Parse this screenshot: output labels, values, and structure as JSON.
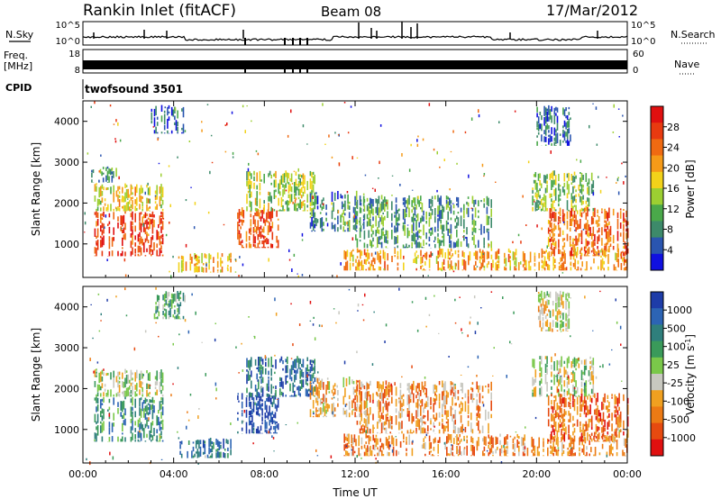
{
  "header": {
    "station": "Rankin Inlet (fitACF)",
    "beam": "Beam 08",
    "date": "17/Mar/2012"
  },
  "top_panels": {
    "nsky_label": "N.Sky",
    "nsky_ticks": [
      "10^5",
      "10^0"
    ],
    "nsearch_label": "N.Search",
    "nsearch_ticks": [
      "10^5",
      "10^0"
    ],
    "freq_label": "Freq.",
    "freq_unit": "[MHz]",
    "freq_ticks": [
      "18",
      "8"
    ],
    "nave_label": "Nave",
    "nave_ticks": [
      "60",
      "0"
    ],
    "cpid_label": "CPID",
    "cpid_value": "twofsound 3501"
  },
  "chart_data": [
    {
      "type": "heatmap",
      "name": "power",
      "xlabel": "",
      "ylabel": "Slant Range [km]",
      "xlim": [
        0,
        24
      ],
      "ylim": [
        180,
        4500
      ],
      "yticks": [
        1000,
        2000,
        3000,
        4000
      ],
      "ytick_labels": [
        "1000",
        "2000",
        "3000",
        "4000"
      ],
      "colorbar_label": "Power [dB]",
      "colorbar_ticks": [
        "4",
        "8",
        "12",
        "16",
        "20",
        "24",
        "28"
      ],
      "colorbar_colors": [
        "#1010e0",
        "#2a55b0",
        "#3d8a6a",
        "#4aa84a",
        "#9ccf32",
        "#f2d21a",
        "#f59a18",
        "#ef6a12",
        "#e83a10",
        "#e01010"
      ],
      "regions": [
        {
          "x": [
            0.5,
            3.5
          ],
          "y": [
            700,
            1800
          ],
          "level": 0.85
        },
        {
          "x": [
            0.5,
            3.5
          ],
          "y": [
            1800,
            2500
          ],
          "level": 0.55
        },
        {
          "x": [
            0.3,
            1.5
          ],
          "y": [
            2500,
            2900
          ],
          "level": 0.3
        },
        {
          "x": [
            4.2,
            6.5
          ],
          "y": [
            300,
            800
          ],
          "level": 0.6
        },
        {
          "x": [
            6.8,
            8.6
          ],
          "y": [
            900,
            1900
          ],
          "level": 0.8
        },
        {
          "x": [
            7.2,
            10.2
          ],
          "y": [
            1800,
            2800
          ],
          "level": 0.45
        },
        {
          "x": [
            10.0,
            12.5
          ],
          "y": [
            1300,
            2300
          ],
          "level": 0.25
        },
        {
          "x": [
            11.5,
            24.0
          ],
          "y": [
            350,
            900
          ],
          "level": 0.65
        },
        {
          "x": [
            12.0,
            18.0
          ],
          "y": [
            900,
            2200
          ],
          "level": 0.3
        },
        {
          "x": [
            19.8,
            22.5
          ],
          "y": [
            1800,
            2800
          ],
          "level": 0.4
        },
        {
          "x": [
            20.5,
            24.0
          ],
          "y": [
            700,
            1900
          ],
          "level": 0.75
        },
        {
          "x": [
            20.0,
            21.5
          ],
          "y": [
            3400,
            4400
          ],
          "level": 0.2
        },
        {
          "x": [
            3.0,
            4.5
          ],
          "y": [
            3700,
            4400
          ],
          "level": 0.15
        }
      ]
    },
    {
      "type": "heatmap",
      "name": "velocity",
      "xlabel": "Time UT",
      "ylabel": "Slant Range [km]",
      "xlim": [
        0,
        24
      ],
      "ylim": [
        180,
        4500
      ],
      "xticks": [
        0,
        4,
        8,
        12,
        16,
        20,
        24
      ],
      "xtick_labels": [
        "00:00",
        "04:00",
        "08:00",
        "12:00",
        "16:00",
        "20:00",
        "00:00"
      ],
      "yticks": [
        1000,
        2000,
        3000,
        4000
      ],
      "ytick_labels": [
        "1000",
        "2000",
        "3000",
        "4000"
      ],
      "colorbar_label": "Velocity [m s^-1]",
      "colorbar_ticks": [
        "1000",
        "500",
        "100",
        "25",
        "-25",
        "-100",
        "-500",
        "-1000"
      ],
      "colorbar_colors": [
        "#1e3ca8",
        "#2c64b4",
        "#2f7f7c",
        "#3a9a5a",
        "#7ac84a",
        "#c8c8c0",
        "#f0a020",
        "#ec7a14",
        "#e64a10",
        "#e01010"
      ],
      "regions": [
        {
          "x": [
            0.5,
            3.5
          ],
          "y": [
            700,
            1800
          ],
          "level": 0.3
        },
        {
          "x": [
            0.5,
            3.5
          ],
          "y": [
            1800,
            2500
          ],
          "level": 0.5
        },
        {
          "x": [
            4.2,
            6.5
          ],
          "y": [
            300,
            800
          ],
          "level": 0.25
        },
        {
          "x": [
            6.8,
            8.6
          ],
          "y": [
            900,
            1900
          ],
          "level": 0.05
        },
        {
          "x": [
            7.2,
            10.2
          ],
          "y": [
            1800,
            2800
          ],
          "level": 0.2
        },
        {
          "x": [
            10.0,
            12.5
          ],
          "y": [
            1300,
            2300
          ],
          "level": 0.65
        },
        {
          "x": [
            11.5,
            24.0
          ],
          "y": [
            350,
            900
          ],
          "level": 0.72
        },
        {
          "x": [
            12.0,
            18.0
          ],
          "y": [
            900,
            2200
          ],
          "level": 0.7
        },
        {
          "x": [
            19.8,
            22.5
          ],
          "y": [
            1800,
            2800
          ],
          "level": 0.5
        },
        {
          "x": [
            20.5,
            24.0
          ],
          "y": [
            700,
            1900
          ],
          "level": 0.78
        },
        {
          "x": [
            20.0,
            21.5
          ],
          "y": [
            3400,
            4400
          ],
          "level": 0.55
        },
        {
          "x": [
            3.0,
            4.5
          ],
          "y": [
            3700,
            4400
          ],
          "level": 0.4
        }
      ]
    }
  ]
}
